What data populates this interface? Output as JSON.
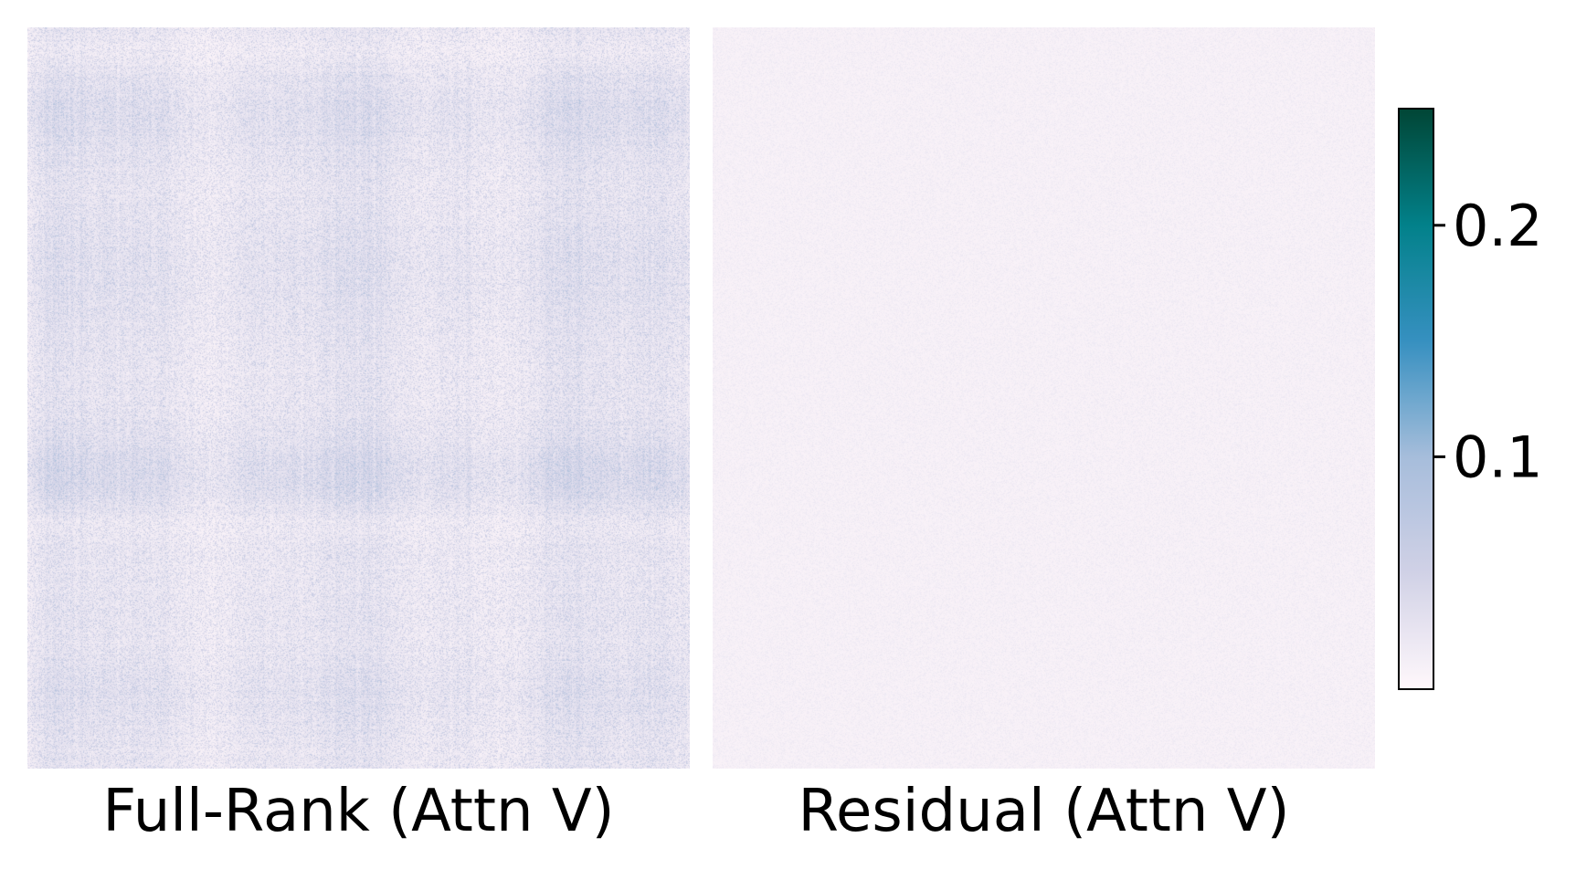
{
  "chart_data": [
    {
      "type": "heatmap",
      "title": "Full-Rank (Attn V)",
      "description_values": {
        "typical_range": [
          0.0,
          0.12
        ],
        "pattern": "banded block structure with darker horizontal bands near top and middle"
      },
      "colormap": "PuBuGn",
      "vmin": 0.0,
      "vmax": 0.25
    },
    {
      "type": "heatmap",
      "title": "Residual (Attn V)",
      "description_values": {
        "typical_range": [
          0.0,
          0.03
        ],
        "pattern": "near-uniform low values"
      },
      "colormap": "PuBuGn",
      "vmin": 0.0,
      "vmax": 0.25
    }
  ],
  "colorbar": {
    "ticks": [
      0.1,
      0.2
    ],
    "tick_labels": [
      "0.1",
      "0.2"
    ],
    "vmin": 0.0,
    "vmax": 0.25
  },
  "colors": {
    "low": "#fff7fb",
    "mid": "#a6bddb",
    "blue": "#3690c0",
    "teal": "#02818a",
    "high": "#014636"
  }
}
